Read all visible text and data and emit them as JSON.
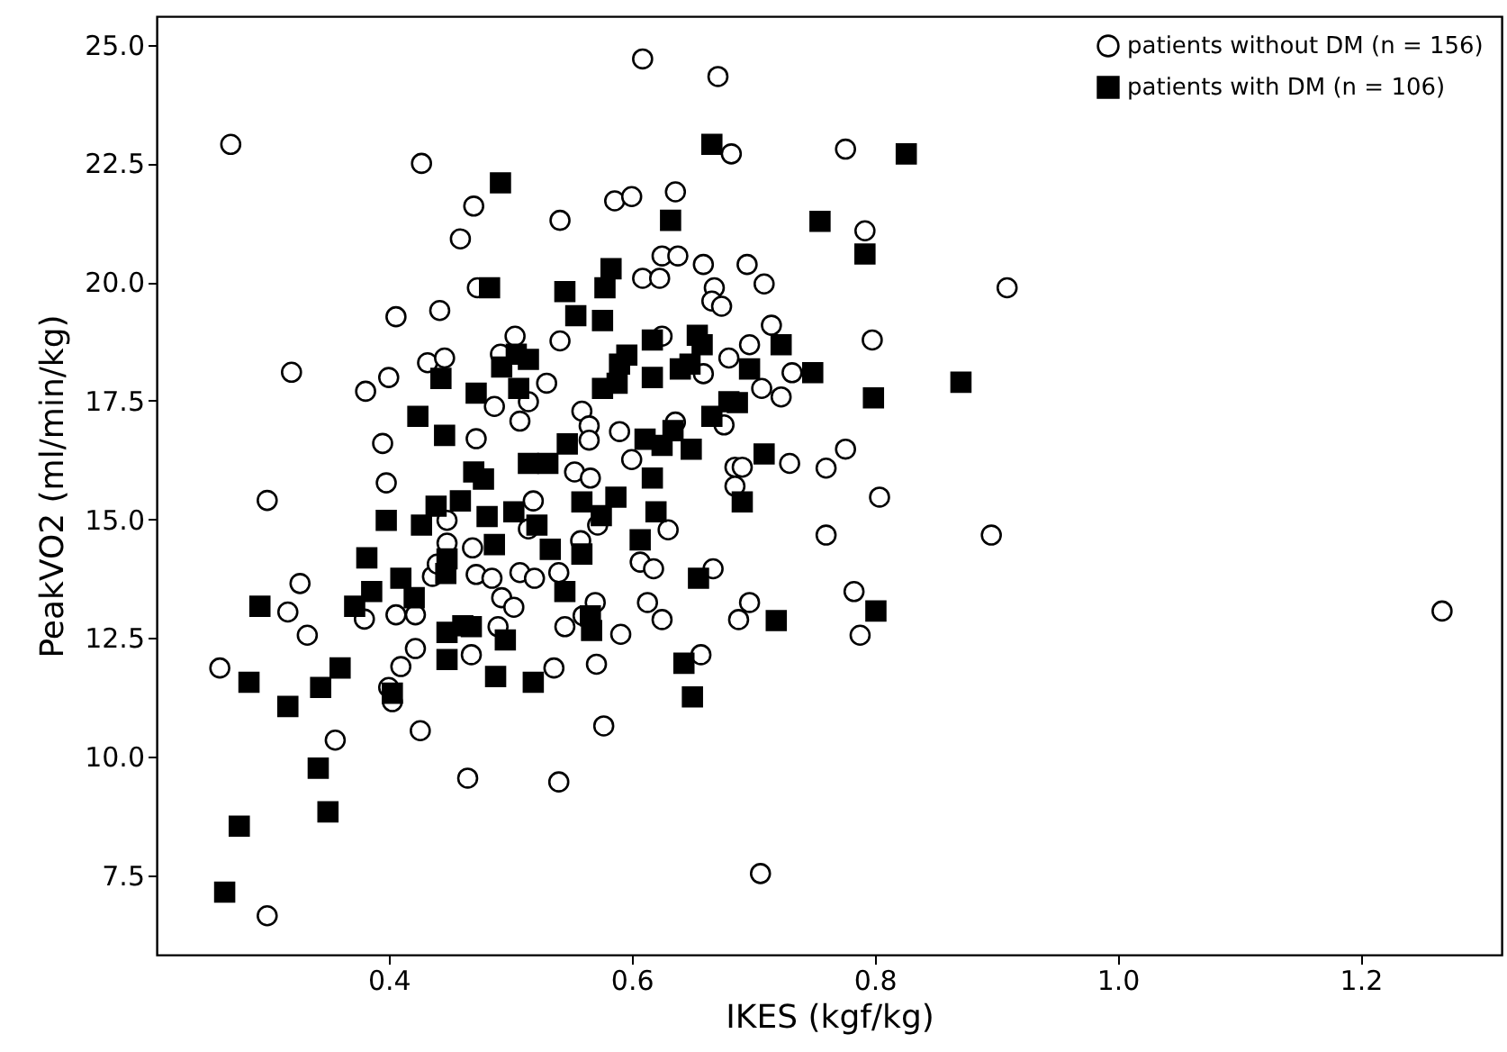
{
  "chart_data": {
    "type": "scatter",
    "xlabel": "IKES (kgf/kg)",
    "ylabel": "PeakVO2 (ml/min/kg)",
    "xlim": [
      0.209,
      1.316
    ],
    "ylim": [
      5.83,
      25.6
    ],
    "xticks": [
      0.4,
      0.6,
      0.8,
      {
        "value": 1.0,
        "label": "1.0"
      },
      1.2
    ],
    "yticks": [
      7.5,
      {
        "value": 10,
        "label": "10.0"
      },
      12.5,
      {
        "value": 15,
        "label": "15.0"
      },
      17.5,
      {
        "value": 20,
        "label": "20.0"
      },
      22.5,
      {
        "value": 25,
        "label": "25.0"
      }
    ],
    "grid": false,
    "legend": "top right",
    "series": [
      {
        "name": "patients without DM (n = 156)",
        "color": "#ffffff",
        "marker": "circle",
        "x": [
          0.261,
          0.27,
          0.3,
          0.3,
          0.32,
          0.317,
          0.327,
          0.333,
          0.356,
          0.381,
          0.38,
          0.4,
          0.395,
          0.398,
          0.406,
          0.4,
          0.403,
          0.41,
          0.406,
          0.422,
          0.422,
          0.427,
          0.426,
          0.442,
          0.432,
          0.446,
          0.436,
          0.44,
          0.448,
          0.448,
          0.459,
          0.47,
          0.473,
          0.472,
          0.469,
          0.472,
          0.465,
          0.468,
          0.485,
          0.49,
          0.493,
          0.503,
          0.487,
          0.492,
          0.504,
          0.508,
          0.515,
          0.508,
          0.519,
          0.52,
          0.53,
          0.515,
          0.536,
          0.54,
          0.541,
          0.541,
          0.54,
          0.545,
          0.553,
          0.559,
          0.565,
          0.565,
          0.566,
          0.558,
          0.56,
          0.57,
          0.571,
          0.572,
          0.577,
          0.586,
          0.59,
          0.591,
          0.6,
          0.6,
          0.609,
          0.609,
          0.607,
          0.613,
          0.618,
          0.623,
          0.625,
          0.625,
          0.625,
          0.63,
          0.636,
          0.636,
          0.638,
          0.659,
          0.659,
          0.668,
          0.666,
          0.671,
          0.667,
          0.674,
          0.657,
          0.682,
          0.68,
          0.676,
          0.685,
          0.691,
          0.685,
          0.688,
          0.695,
          0.697,
          0.697,
          0.709,
          0.707,
          0.706,
          0.715,
          0.723,
          0.73,
          0.732,
          0.76,
          0.76,
          0.776,
          0.776,
          0.783,
          0.788,
          0.792,
          0.798,
          0.804,
          0.896,
          0.909,
          1.267
        ],
        "values": [
          11.87,
          22.9,
          15.4,
          6.65,
          18.1,
          13.05,
          13.65,
          12.56,
          10.35,
          17.7,
          12.9,
          17.99,
          16.6,
          15.77,
          19.27,
          11.46,
          11.16,
          11.9,
          12.99,
          12.99,
          12.28,
          22.5,
          10.55,
          19.4,
          18.3,
          18.4,
          13.8,
          14.06,
          14.98,
          14.5,
          20.91,
          21.6,
          19.88,
          16.7,
          14.4,
          13.84,
          9.55,
          12.15,
          13.76,
          12.74,
          13.35,
          13.15,
          17.38,
          18.48,
          18.86,
          17.07,
          17.48,
          13.88,
          15.39,
          13.76,
          17.87,
          14.8,
          11.87,
          9.47,
          21.3,
          18.76,
          13.88,
          12.74,
          16.0,
          17.28,
          16.97,
          16.67,
          15.87,
          14.55,
          12.97,
          13.25,
          11.95,
          14.88,
          10.65,
          21.71,
          16.85,
          12.58,
          21.8,
          16.26,
          20.08,
          24.7,
          14.1,
          13.25,
          13.96,
          20.08,
          20.55,
          18.86,
          12.89,
          14.78,
          21.9,
          17.05,
          20.55,
          18.07,
          20.37,
          19.88,
          19.6,
          24.33,
          13.96,
          19.49,
          12.15,
          22.7,
          18.4,
          16.99,
          16.1,
          16.1,
          15.7,
          12.89,
          20.37,
          18.68,
          13.25,
          19.96,
          17.76,
          7.54,
          19.09,
          17.58,
          16.18,
          18.09,
          14.67,
          16.08,
          22.8,
          16.48,
          13.48,
          12.56,
          21.08,
          18.78,
          15.47,
          14.67,
          19.88,
          13.07
        ]
      },
      {
        "name": "patients with DM (n = 106)",
        "color": "#000000",
        "marker": "square",
        "x": [
          0.265,
          0.277,
          0.285,
          0.294,
          0.317,
          0.342,
          0.344,
          0.35,
          0.36,
          0.372,
          0.382,
          0.386,
          0.398,
          0.403,
          0.41,
          0.421,
          0.424,
          0.439,
          0.443,
          0.446,
          0.427,
          0.448,
          0.447,
          0.448,
          0.448,
          0.459,
          0.461,
          0.468,
          0.47,
          0.472,
          0.478,
          0.481,
          0.483,
          0.487,
          0.488,
          0.492,
          0.496,
          0.493,
          0.505,
          0.507,
          0.515,
          0.503,
          0.519,
          0.515,
          0.522,
          0.531,
          0.533,
          0.545,
          0.547,
          0.554,
          0.545,
          0.559,
          0.559,
          0.566,
          0.567,
          0.576,
          0.578,
          0.583,
          0.576,
          0.575,
          0.587,
          0.588,
          0.59,
          0.596,
          0.607,
          0.611,
          0.617,
          0.617,
          0.617,
          0.62,
          0.625,
          0.632,
          0.634,
          0.64,
          0.648,
          0.649,
          0.655,
          0.654,
          0.658,
          0.643,
          0.65,
          0.666,
          0.666,
          0.68,
          0.687,
          0.697,
          0.691,
          0.709,
          0.719,
          0.723,
          0.749,
          0.755,
          0.792,
          0.799,
          0.801,
          0.826,
          0.871
        ],
        "values": [
          7.15,
          8.54,
          11.57,
          13.17,
          11.06,
          9.76,
          11.46,
          8.84,
          11.87,
          13.17,
          14.19,
          13.48,
          14.98,
          11.34,
          13.76,
          13.35,
          17.17,
          15.28,
          17.97,
          16.77,
          14.88,
          14.17,
          13.86,
          12.05,
          12.62,
          15.39,
          12.76,
          12.74,
          16.0,
          17.66,
          15.85,
          15.06,
          19.88,
          14.47,
          11.69,
          22.09,
          12.46,
          18.21,
          18.48,
          17.76,
          18.37,
          15.16,
          11.57,
          16.18,
          14.88,
          16.18,
          14.37,
          19.8,
          16.59,
          19.29,
          13.48,
          15.37,
          14.27,
          12.97,
          12.66,
          19.19,
          19.88,
          20.28,
          17.76,
          15.08,
          15.47,
          17.87,
          18.27,
          18.46,
          14.57,
          16.69,
          18.78,
          17.99,
          15.87,
          15.16,
          16.56,
          21.3,
          16.87,
          18.17,
          18.27,
          16.48,
          13.76,
          18.88,
          18.68,
          11.97,
          11.26,
          22.9,
          17.17,
          17.48,
          17.46,
          18.17,
          15.37,
          16.38,
          12.87,
          18.68,
          18.09,
          21.28,
          20.59,
          17.56,
          13.07,
          22.7,
          17.89
        ]
      }
    ]
  }
}
